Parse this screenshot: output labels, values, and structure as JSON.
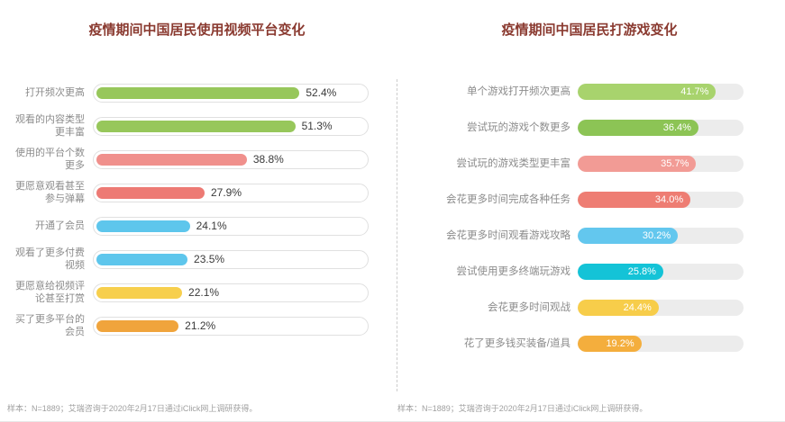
{
  "colors": {
    "title": "#8a3a30",
    "label": "#8c8c8c",
    "note": "#a0a0a0",
    "track_border": "#e0e0e0",
    "track_fill": "#ececec",
    "divider": "#cccccc"
  },
  "chart_data": [
    {
      "type": "bar",
      "orientation": "horizontal",
      "title": "疫情期间中国居民使用视频平台变化",
      "categories": [
        "打开频次更高",
        "观看的内容类型更丰富",
        "使用的平台个数更多",
        "更愿意观看甚至参与弹幕",
        "开通了会员",
        "观看了更多付费视频",
        "更愿意给视频评论甚至打赏",
        "买了更多平台的会员"
      ],
      "values": [
        52.4,
        51.3,
        38.8,
        27.9,
        24.1,
        23.5,
        22.1,
        21.2
      ],
      "value_labels": [
        "52.4%",
        "51.3%",
        "38.8%",
        "27.9%",
        "24.1%",
        "23.5%",
        "22.1%",
        "21.2%"
      ],
      "bar_colors": [
        "#97c75b",
        "#97c75b",
        "#f0908c",
        "#ed7a74",
        "#5ec6ec",
        "#5ec6ec",
        "#f7cf4d",
        "#f0a43c"
      ],
      "xlim": [
        0,
        70
      ],
      "value_label_position": "outside-right",
      "track_style": "white-outlined-pill",
      "grid": false,
      "legend": "none",
      "note": "样本：N=1889；艾瑞咨询于2020年2月17日通过iClick网上调研获得。"
    },
    {
      "type": "bar",
      "orientation": "horizontal",
      "title": "疫情期间中国居民打游戏变化",
      "categories": [
        "单个游戏打开频次更高",
        "尝试玩的游戏个数更多",
        "尝试玩的游戏类型更丰富",
        "会花更多时间完成各种任务",
        "会花更多时间观看游戏攻略",
        "尝试使用更多终端玩游戏",
        "会花更多时间观战",
        "花了更多钱买装备/道具"
      ],
      "values": [
        41.7,
        36.4,
        35.7,
        34.0,
        30.2,
        25.8,
        24.4,
        19.2
      ],
      "value_labels": [
        "41.7%",
        "36.4%",
        "35.7%",
        "34.0%",
        "30.2%",
        "25.8%",
        "24.4%",
        "19.2%"
      ],
      "bar_colors": [
        "#a8d36d",
        "#8cc455",
        "#f29b95",
        "#ee7d73",
        "#63c7ee",
        "#14c3d7",
        "#f7cd4a",
        "#f4ae3d"
      ],
      "xlim": [
        0,
        50
      ],
      "value_label_position": "inside-right",
      "track_style": "gray-pill",
      "grid": false,
      "legend": "none",
      "note": "样本：N=1889；艾瑞咨询于2020年2月17日通过iClick网上调研获得。"
    }
  ]
}
